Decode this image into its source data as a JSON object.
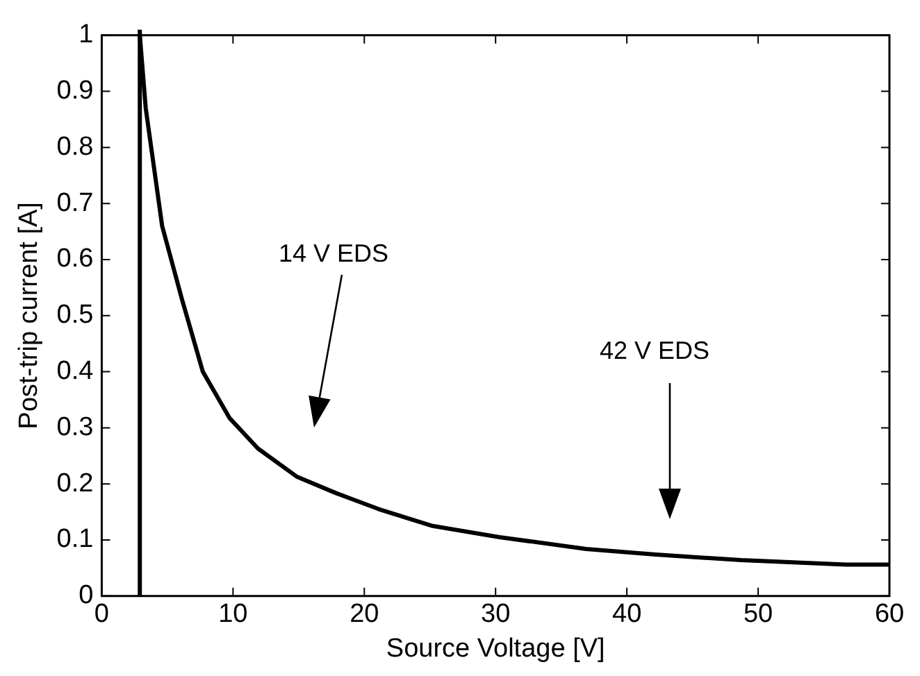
{
  "chart_data": {
    "type": "line",
    "xlabel": "Source Voltage [V]",
    "ylabel": "Post-trip current [A]",
    "x": [
      2.9,
      3.35,
      4.6,
      6.1,
      7.7,
      9.75,
      11.9,
      14.85,
      17.8,
      21.1,
      25.2,
      30.3,
      36.9,
      42.2,
      48.7,
      56.7,
      60
    ],
    "series": [
      {
        "color": "#000000",
        "values": [
          1.0,
          0.87,
          0.66,
          0.53,
          0.4,
          0.317,
          0.263,
          0.213,
          0.184,
          0.155,
          0.125,
          0.105,
          0.084,
          0.074,
          0.064,
          0.056,
          0.056
        ]
      }
    ],
    "xlim": [
      0,
      60
    ],
    "xticks": [
      0,
      10,
      20,
      30,
      40,
      50,
      60
    ],
    "ylim": [
      0,
      1
    ],
    "yticks": [
      0,
      0.1,
      0.2,
      0.3,
      0.4,
      0.5,
      0.6,
      0.7,
      0.8,
      0.9,
      1
    ],
    "ref_lines": [
      {
        "axis": "x",
        "value": 2.9,
        "color": "#000000"
      }
    ],
    "annotations": [
      "14 V EDS",
      "42 V EDS"
    ],
    "grid": false,
    "legend": false,
    "marker": "none",
    "line_style": "solid"
  }
}
